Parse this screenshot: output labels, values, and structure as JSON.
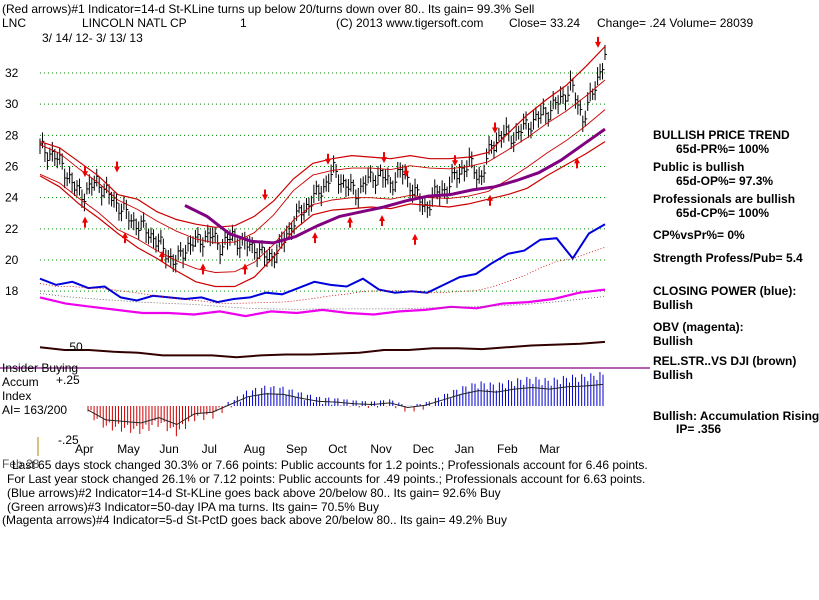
{
  "header": {
    "line1": "(Red arrows)#1 Indicator=14-d St-KLine turns up below 20/turns down over 80..  Its gain= 99.3% Sell",
    "ticker": "LNC",
    "company": "LINCOLN NATL CP",
    "count": "1",
    "copyright": "(C) 2013 www.tigersoft.com",
    "close": "Close=  33.24",
    "change": "Change= .24 Volume= 28039",
    "date_range": "3/ 14/ 12-  3/ 13/ 13"
  },
  "side_panel": {
    "bpt_title": "BULLISH PRICE TREND",
    "bpt_pr": "65d-PR%= 100%",
    "public_bullish": "Public is bullish",
    "public_op": "65d-OP%= 97.3%",
    "pros_bullish": "Professionals are bullish",
    "pros_cp": "65d-CP%= 100%",
    "cp_vs_pr": "CP%vsPr%=  0%",
    "strength": "Strength Profess/Pub= 5.4",
    "closing_power": "CLOSING POWER (blue):",
    "closing_power_state": "Bullish",
    "obv": "OBV (magenta):",
    "obv_state": "Bullish",
    "relstr": "REL.STR..VS DJI (brown)",
    "relstr_state": "Bullish",
    "accum": "Bullish: Accumulation Rising",
    "ip": "IP=  .356"
  },
  "insider": {
    "insider_buying": "Insider Buying",
    "accum": "Accum",
    "index": "Index",
    "ai": "AI= 163/200"
  },
  "footer": {
    "line1_prefix": "Feb 28",
    "line1": "Last 65 days stock changed  30.3% or  7.66 points:  Public accounts for  1.2 points.;  Professionals account for  6.46 points.",
    "line2": "For Last year stock changed  26.1% or  7.12 points:  Public accounts for  .49 points.;  Professionals account for  6.63 points.",
    "line3": "(Blue arrows)#2 Indicator=14-d St-KLine goes back above 20/below 80..  Its gain= 92.6% Buy",
    "line4": "(Green arrows)#3 Indicator=50-day IPA ma turns.  Its gain= 70.5% Buy",
    "line5": "(Magenta arrows)#4 Indicator=5-d St-PctD goes back above 20/below 80..  Its gain= 49.2% Buy"
  },
  "colors": {
    "price": "#000000",
    "bands": "#cc0000",
    "ma": "#800080",
    "closing_power": "#0000dd",
    "obv": "#ee00ee",
    "relstr": "#330000",
    "accum_pos": "#0000cc",
    "accum_neg": "#cc0000",
    "arrows": "#ee0000",
    "grid": "#008800",
    "insider_line": "#880088"
  },
  "chart_data": {
    "type": "line",
    "title": "LINCOLN NATL CP",
    "ticker": "LNC",
    "y_ticks": [
      "32",
      "30",
      "28",
      "26",
      "24",
      "22",
      "20",
      "18"
    ],
    "ylim": [
      16.5,
      33.7
    ],
    "month_labels": [
      "Apr",
      "May",
      "Jun",
      "Jul",
      "Aug",
      "Sep",
      "Oct",
      "Nov",
      "Dec",
      "Jan",
      "Feb",
      "Mar"
    ],
    "accum_ticks": [
      ".50",
      "+.25",
      "-.25"
    ],
    "series": [
      {
        "name": "price_close",
        "values": [
          27.2,
          26.8,
          26.1,
          24.6,
          24.2,
          25.1,
          24.2,
          23.5,
          22.6,
          22.1,
          21.5,
          20.6,
          19.8,
          20.9,
          21.2,
          21.6,
          20.9,
          21.5,
          21.0,
          20.8,
          20.1,
          20.5,
          21.9,
          23.0,
          23.8,
          24.6,
          25.7,
          24.8,
          24.3,
          25.1,
          25.5,
          24.9,
          25.7,
          24.6,
          23.3,
          24.2,
          24.6,
          25.6,
          26.2,
          25.2,
          27.4,
          28.1,
          27.9,
          28.6,
          29.1,
          29.6,
          30.2,
          31.2,
          29.1,
          30.8,
          33.2
        ]
      },
      {
        "name": "ma_50",
        "values": [
          23.5,
          22.8,
          21.7,
          21.2,
          21.1,
          21.5,
          22.2,
          22.8,
          23.1,
          23.4,
          23.8,
          24.1,
          24.2,
          24.5,
          24.7,
          25.1,
          25.6,
          26.4,
          27.4,
          28.4
        ]
      },
      {
        "name": "band_upper",
        "values": [
          27.6,
          27.2,
          26.3,
          25.4,
          24.2,
          23.9,
          23.1,
          22.6,
          22.3,
          22.1,
          22.2,
          22.8,
          23.8,
          25.2,
          26.2,
          26.5,
          26.7,
          26.6,
          26.5,
          26.7,
          26.5,
          26.5,
          26.6,
          26.9,
          28.1,
          29.3,
          30.3,
          31.2,
          32.4,
          33.7
        ]
      },
      {
        "name": "band_lower",
        "values": [
          25.4,
          24.7,
          23.6,
          22.7,
          21.7,
          20.8,
          20.1,
          19.3,
          18.6,
          18.3,
          18.3,
          18.9,
          20.2,
          21.9,
          22.9,
          23.2,
          23.3,
          23.4,
          23.3,
          23.6,
          23.5,
          23.4,
          23.6,
          23.9,
          24.2,
          24.6,
          25.4,
          26.1,
          26.8,
          27.6
        ]
      },
      {
        "name": "closing_power_blue",
        "values": [
          18.8,
          18.4,
          18.6,
          18.2,
          18.3,
          17.6,
          17.4,
          17.7,
          17.6,
          17.5,
          17.6,
          17.3,
          17.5,
          17.6,
          17.9,
          17.8,
          18.2,
          18.6,
          18.4,
          18.3,
          18.8,
          18.1,
          17.9,
          18.0,
          17.9,
          18.4,
          18.9,
          19.1,
          19.8,
          20.4,
          20.6,
          21.3,
          21.4,
          20.1,
          21.7,
          22.3
        ]
      },
      {
        "name": "obv_magenta",
        "values": [
          17.6,
          17.2,
          17.0,
          16.8,
          16.6,
          16.6,
          16.5,
          16.7,
          16.4,
          16.7,
          16.6,
          16.8,
          16.6,
          16.5,
          16.7,
          16.8,
          17.0,
          16.9,
          17.2,
          17.3,
          17.5,
          17.9,
          18.1
        ]
      },
      {
        "name": "relstr_brown",
        "values": [
          0.53,
          0.5,
          0.5,
          0.48,
          0.47,
          0.44,
          0.44,
          0.44,
          0.42,
          0.44,
          0.45,
          0.45,
          0.46,
          0.47,
          0.5,
          0.5,
          0.52,
          0.52,
          0.51,
          0.53,
          0.55,
          0.56,
          0.57,
          0.59
        ]
      },
      {
        "name": "accum_index",
        "values": [
          -0.05,
          -0.18,
          -0.2,
          -0.22,
          -0.15,
          -0.24,
          -0.1,
          -0.08,
          0.02,
          0.12,
          0.16,
          0.15,
          0.1,
          0.06,
          0.05,
          0.03,
          0.02,
          0.04,
          -0.02,
          0.01,
          0.08,
          0.15,
          0.2,
          0.18,
          0.22,
          0.24,
          0.22,
          0.25,
          0.26,
          0.28
        ]
      }
    ],
    "sell_arrows": [
      "Apr",
      "Apr",
      "Jul",
      "Aug",
      "Sep",
      "Oct",
      "Nov",
      "Dec",
      "Mar"
    ],
    "buy_arrows": [
      "Apr",
      "May",
      "Jun",
      "Jul",
      "Jul",
      "Aug",
      "Sep",
      "Oct",
      "Nov",
      "Dec",
      "Feb"
    ]
  }
}
